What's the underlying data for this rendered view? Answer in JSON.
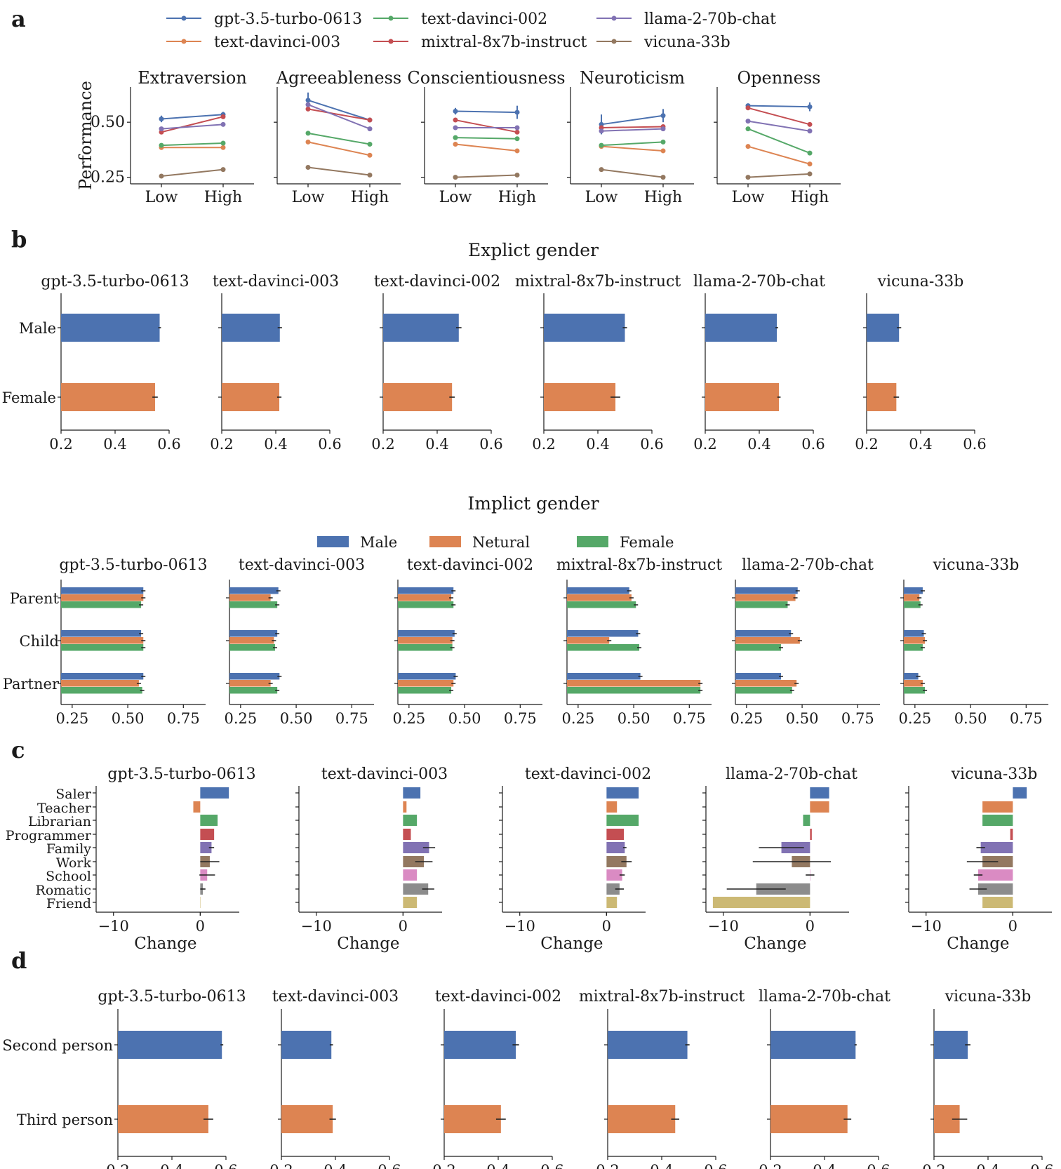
{
  "colors": {
    "gpt": "#4c72b0",
    "td3": "#dd8452",
    "td2": "#55a868",
    "mix": "#c44e52",
    "llama": "#8172b3",
    "vic": "#937860",
    "male": "#4c72b0",
    "neutral": "#dd8452",
    "female": "#55a868",
    "cat": [
      "#4c72b0",
      "#dd8452",
      "#55a868",
      "#c44e52",
      "#8172b3",
      "#937860",
      "#da8bc3",
      "#8c8c8c",
      "#ccb974"
    ]
  },
  "panels": {
    "a": "a",
    "b": "b",
    "c": "c",
    "d": "d"
  },
  "chart_data": [
    {
      "id": "a",
      "type": "line",
      "legend": [
        {
          "key": "gpt",
          "label": "gpt-3.5-turbo-0613"
        },
        {
          "key": "td2",
          "label": "text-davinci-002"
        },
        {
          "key": "llama",
          "label": "llama-2-70b-chat"
        },
        {
          "key": "td3",
          "label": "text-davinci-003"
        },
        {
          "key": "mix",
          "label": "mixtral-8x7b-instruct"
        },
        {
          "key": "vic",
          "label": "vicuna-33b"
        }
      ],
      "ylabel": "Performance",
      "ylim": [
        0.22,
        0.66
      ],
      "yticks": [
        0.25,
        0.5
      ],
      "ytick_labels": [
        "0.25",
        "0.50"
      ],
      "categories": [
        "Low",
        "High"
      ],
      "subplots": [
        {
          "title": "Extraversion",
          "series": [
            {
              "key": "gpt",
              "values": [
                0.515,
                0.535
              ],
              "err": [
                0.015,
                0.012
              ]
            },
            {
              "key": "td3",
              "values": [
                0.385,
                0.385
              ],
              "err": [
                0,
                0
              ]
            },
            {
              "key": "td2",
              "values": [
                0.395,
                0.405
              ],
              "err": [
                0,
                0
              ]
            },
            {
              "key": "mix",
              "values": [
                0.455,
                0.525
              ],
              "err": [
                0,
                0
              ]
            },
            {
              "key": "llama",
              "values": [
                0.47,
                0.49
              ],
              "err": [
                0,
                0
              ]
            },
            {
              "key": "vic",
              "values": [
                0.255,
                0.285
              ],
              "err": [
                0,
                0
              ]
            }
          ]
        },
        {
          "title": "Agreeableness",
          "series": [
            {
              "key": "gpt",
              "values": [
                0.6,
                0.51
              ],
              "err": [
                0.035,
                0
              ]
            },
            {
              "key": "td3",
              "values": [
                0.41,
                0.35
              ],
              "err": [
                0,
                0
              ]
            },
            {
              "key": "td2",
              "values": [
                0.45,
                0.4
              ],
              "err": [
                0,
                0
              ]
            },
            {
              "key": "mix",
              "values": [
                0.56,
                0.51
              ],
              "err": [
                0,
                0
              ]
            },
            {
              "key": "llama",
              "values": [
                0.58,
                0.47
              ],
              "err": [
                0,
                0
              ]
            },
            {
              "key": "vic",
              "values": [
                0.295,
                0.26
              ],
              "err": [
                0,
                0
              ]
            }
          ]
        },
        {
          "title": "Conscientiousness",
          "series": [
            {
              "key": "gpt",
              "values": [
                0.55,
                0.545
              ],
              "err": [
                0.015,
                0.03
              ]
            },
            {
              "key": "td3",
              "values": [
                0.4,
                0.37
              ],
              "err": [
                0,
                0
              ]
            },
            {
              "key": "td2",
              "values": [
                0.43,
                0.425
              ],
              "err": [
                0,
                0
              ]
            },
            {
              "key": "mix",
              "values": [
                0.51,
                0.455
              ],
              "err": [
                0,
                0
              ]
            },
            {
              "key": "llama",
              "values": [
                0.475,
                0.475
              ],
              "err": [
                0,
                0
              ]
            },
            {
              "key": "vic",
              "values": [
                0.25,
                0.26
              ],
              "err": [
                0,
                0
              ]
            }
          ]
        },
        {
          "title": "Neuroticism",
          "series": [
            {
              "key": "gpt",
              "values": [
                0.49,
                0.53
              ],
              "err": [
                0.045,
                0.03
              ]
            },
            {
              "key": "td3",
              "values": [
                0.39,
                0.37
              ],
              "err": [
                0,
                0
              ]
            },
            {
              "key": "td2",
              "values": [
                0.395,
                0.41
              ],
              "err": [
                0,
                0
              ]
            },
            {
              "key": "mix",
              "values": [
                0.475,
                0.48
              ],
              "err": [
                0,
                0
              ]
            },
            {
              "key": "llama",
              "values": [
                0.46,
                0.47
              ],
              "err": [
                0,
                0
              ]
            },
            {
              "key": "vic",
              "values": [
                0.285,
                0.25
              ],
              "err": [
                0,
                0
              ]
            }
          ]
        },
        {
          "title": "Openness",
          "series": [
            {
              "key": "gpt",
              "values": [
                0.575,
                0.57
              ],
              "err": [
                0,
                0.02
              ]
            },
            {
              "key": "td3",
              "values": [
                0.39,
                0.31
              ],
              "err": [
                0,
                0
              ]
            },
            {
              "key": "td2",
              "values": [
                0.47,
                0.36
              ],
              "err": [
                0,
                0
              ]
            },
            {
              "key": "mix",
              "values": [
                0.565,
                0.49
              ],
              "err": [
                0,
                0
              ]
            },
            {
              "key": "llama",
              "values": [
                0.505,
                0.46
              ],
              "err": [
                0,
                0
              ]
            },
            {
              "key": "vic",
              "values": [
                0.25,
                0.265
              ],
              "err": [
                0,
                0
              ]
            }
          ]
        }
      ]
    },
    {
      "id": "b-explicit",
      "type": "bar",
      "title": "Explict gender",
      "categories": [
        "Male",
        "Female"
      ],
      "xlim": [
        0.2,
        0.6
      ],
      "xticks": [
        "0.2",
        "0.4",
        "0.6"
      ],
      "subplots": [
        {
          "title": "gpt-3.5-turbo-0613",
          "values": [
            0.565,
            0.548
          ],
          "err": [
            0.005,
            0.01
          ]
        },
        {
          "title": "text-davinci-003",
          "values": [
            0.415,
            0.413
          ],
          "err": [
            0.008,
            0.008
          ]
        },
        {
          "title": "text-davinci-002",
          "values": [
            0.48,
            0.455
          ],
          "err": [
            0.01,
            0.01
          ]
        },
        {
          "title": "mixtral-8x7b-instruct",
          "values": [
            0.5,
            0.465
          ],
          "err": [
            0.008,
            0.018
          ]
        },
        {
          "title": "llama-2-70b-chat",
          "values": [
            0.465,
            0.473
          ],
          "err": [
            0.005,
            0.006
          ]
        },
        {
          "title": "vicuna-33b",
          "values": [
            0.32,
            0.31
          ],
          "err": [
            0.008,
            0.01
          ]
        }
      ]
    },
    {
      "id": "b-implicit",
      "type": "bar",
      "title": "Implict gender",
      "legend": [
        "Male",
        "Netural",
        "Female"
      ],
      "categories": [
        "Parent",
        "Child",
        "Partner"
      ],
      "xlim": [
        0.2,
        0.85
      ],
      "xticks": [
        "0.25",
        "0.50",
        "0.75"
      ],
      "subplots": [
        {
          "title": "gpt-3.5-turbo-0613",
          "values": [
            [
              0.57,
              0.57,
              0.56
            ],
            [
              0.56,
              0.57,
              0.57
            ],
            [
              0.57,
              0.55,
              0.565
            ]
          ]
        },
        {
          "title": "text-davinci-003",
          "values": [
            [
              0.42,
              0.385,
              0.415
            ],
            [
              0.415,
              0.4,
              0.405
            ],
            [
              0.425,
              0.385,
              0.415
            ]
          ]
        },
        {
          "title": "text-davinci-002",
          "values": [
            [
              0.45,
              0.44,
              0.45
            ],
            [
              0.455,
              0.445,
              0.445
            ],
            [
              0.46,
              0.45,
              0.44
            ]
          ]
        },
        {
          "title": "mixtral-8x7b-instruct",
          "values": [
            [
              0.48,
              0.49,
              0.51
            ],
            [
              0.52,
              0.39,
              0.525
            ],
            [
              0.53,
              0.8,
              0.8
            ]
          ]
        },
        {
          "title": "llama-2-70b-chat",
          "values": [
            [
              0.48,
              0.47,
              0.435
            ],
            [
              0.45,
              0.49,
              0.405
            ],
            [
              0.405,
              0.475,
              0.455
            ]
          ]
        },
        {
          "title": "vicuna-33b",
          "values": [
            [
              0.285,
              0.27,
              0.275
            ],
            [
              0.29,
              0.295,
              0.285
            ],
            [
              0.265,
              0.285,
              0.295
            ]
          ]
        }
      ]
    },
    {
      "id": "c",
      "type": "bar",
      "categories": [
        "Saler",
        "Teacher",
        "Librarian",
        "Programmer",
        "Family",
        "Work",
        "School",
        "Romatic",
        "Friend"
      ],
      "xlabel": "Change",
      "xlim": [
        -12,
        4.5
      ],
      "xticks": [
        "−10",
        "0"
      ],
      "subplots": [
        {
          "title": "gpt-3.5-turbo-0613",
          "values": [
            3.3,
            -0.8,
            2.0,
            1.6,
            1.3,
            1.1,
            0.8,
            0.3,
            0.0
          ],
          "err": [
            0,
            0,
            0,
            0,
            0.3,
            1.1,
            0.9,
            0.3,
            0
          ]
        },
        {
          "title": "text-davinci-003",
          "values": [
            2.0,
            0.4,
            1.6,
            0.9,
            3.0,
            2.4,
            1.6,
            2.9,
            1.6
          ],
          "err": [
            0,
            0,
            0,
            0,
            0.7,
            1.0,
            0,
            0.7,
            0
          ]
        },
        {
          "title": "text-davinci-002",
          "values": [
            3.7,
            1.2,
            3.7,
            2.0,
            2.1,
            2.3,
            1.8,
            1.5,
            1.2
          ],
          "err": [
            0,
            0,
            0,
            0,
            0.2,
            0.6,
            0.3,
            0.5,
            0
          ]
        },
        {
          "title": "llama-2-70b-chat",
          "values": [
            2.2,
            2.2,
            -0.8,
            0.2,
            -3.3,
            -2.1,
            0.0,
            -6.2,
            -11.2
          ],
          "err": [
            0,
            0,
            0,
            0,
            2.6,
            4.5,
            0.5,
            3.4,
            0
          ]
        },
        {
          "title": "vicuna-33b",
          "values": [
            1.6,
            -3.5,
            -3.5,
            -0.3,
            -3.7,
            -3.5,
            -4.0,
            -4.0,
            -3.5
          ],
          "err": [
            0,
            0,
            0,
            0,
            0.5,
            1.8,
            0.5,
            1.0,
            0
          ]
        }
      ]
    },
    {
      "id": "d",
      "type": "bar",
      "categories": [
        "Second  person",
        "Third  person"
      ],
      "xlim": [
        0.2,
        0.6
      ],
      "xticks": [
        "0.2",
        "0.4",
        "0.6"
      ],
      "subplots": [
        {
          "title": "gpt-3.5-turbo-0613",
          "values": [
            0.585,
            0.535
          ],
          "err": [
            0.005,
            0.018
          ]
        },
        {
          "title": "text-davinci-003",
          "values": [
            0.385,
            0.39
          ],
          "err": [
            0.006,
            0.012
          ]
        },
        {
          "title": "text-davinci-002",
          "values": [
            0.465,
            0.41
          ],
          "err": [
            0.012,
            0.018
          ]
        },
        {
          "title": "mixtral-8x7b-instruct",
          "values": [
            0.495,
            0.45
          ],
          "err": [
            0.008,
            0.015
          ]
        },
        {
          "title": "llama-2-70b-chat",
          "values": [
            0.515,
            0.485
          ],
          "err": [
            0.004,
            0.014
          ]
        },
        {
          "title": "vicuna-33b",
          "values": [
            0.325,
            0.295
          ],
          "err": [
            0.01,
            0.028
          ]
        }
      ]
    }
  ]
}
